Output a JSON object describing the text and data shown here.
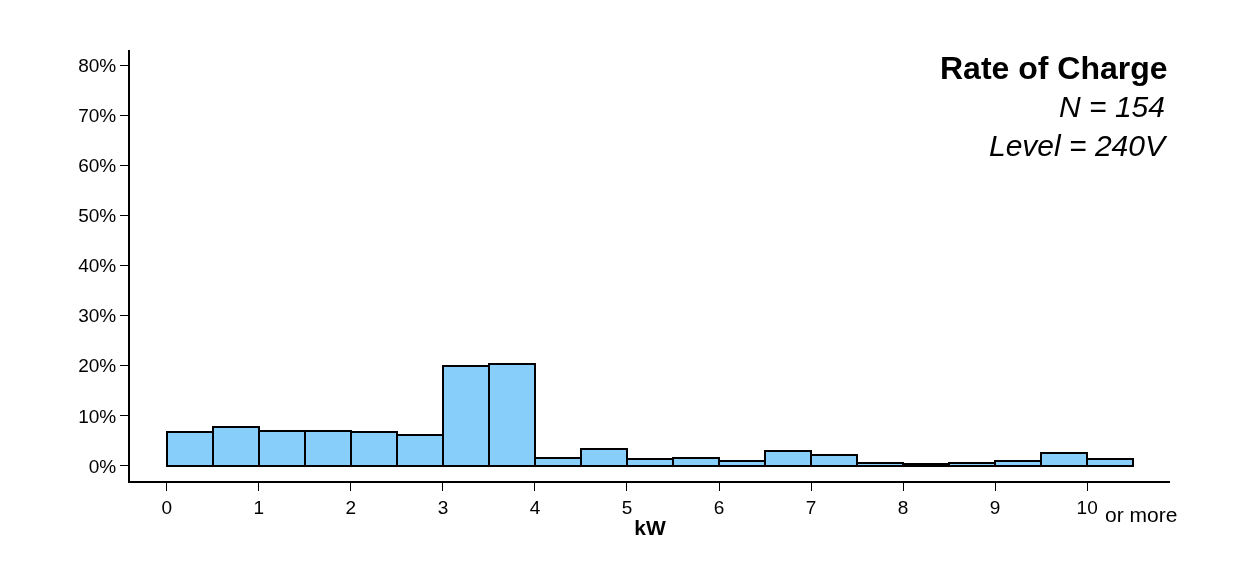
{
  "chart_data": {
    "type": "histogram",
    "title": "Rate of Charge",
    "subtitle": "N = 154\nLevel = 240V",
    "xlabel": "kW",
    "bins": [
      0,
      0.5,
      1,
      1.5,
      2,
      2.5,
      3,
      3.5,
      4,
      4.5,
      5,
      5.5,
      6,
      6.5,
      7,
      7.5,
      8,
      8.5,
      9,
      9.5,
      10,
      10.5
    ],
    "values": [
      6.8,
      7.8,
      7.0,
      7.0,
      6.8,
      6.2,
      20.0,
      20.4,
      1.6,
      3.3,
      1.4,
      1.6,
      1.0,
      2.9,
      2.2,
      0.6,
      0.4,
      0.6,
      1.0,
      2.5,
      1.4
    ],
    "color": "#87cefa",
    "xlim": [
      -0.4,
      10.9
    ],
    "xticks": [
      0,
      1,
      2,
      3,
      4,
      5,
      6,
      7,
      8,
      9,
      10
    ],
    "ylim": [
      -3,
      83
    ],
    "yticks": [
      {
        "value": 0,
        "label": "0%"
      },
      {
        "value": 10,
        "label": "10%"
      },
      {
        "value": 20,
        "label": "20%"
      },
      {
        "value": 30,
        "label": "30%"
      },
      {
        "value": 40,
        "label": "40%"
      },
      {
        "value": 50,
        "label": "50%"
      },
      {
        "value": 60,
        "label": "60%"
      },
      {
        "value": 70,
        "label": "70%"
      },
      {
        "value": 80,
        "label": "80%"
      }
    ],
    "annotations": [
      "or more"
    ]
  }
}
